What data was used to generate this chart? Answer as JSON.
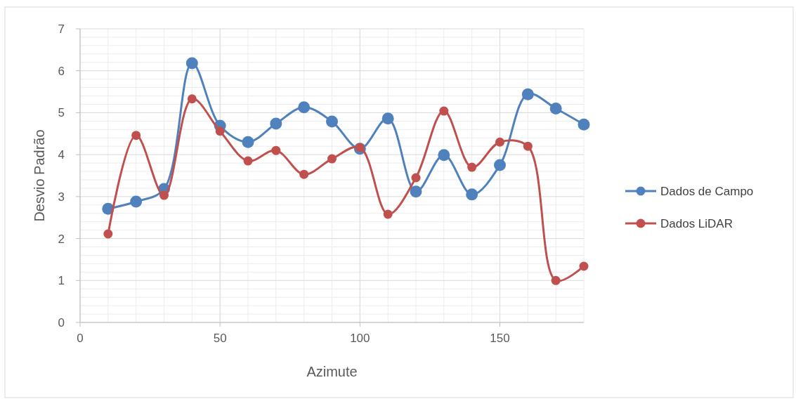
{
  "chart_data": {
    "type": "line",
    "xlabel": "Azimute",
    "ylabel": "Desvio Padrão",
    "x": [
      10,
      20,
      30,
      40,
      50,
      60,
      70,
      80,
      90,
      100,
      110,
      120,
      130,
      140,
      150,
      160,
      170,
      180
    ],
    "xlim": [
      0,
      180
    ],
    "xticks": [
      0,
      50,
      100,
      150
    ],
    "ylim": [
      0,
      7
    ],
    "yticks": [
      0,
      1,
      2,
      3,
      4,
      5,
      6,
      7
    ],
    "grid": true,
    "legend": "right",
    "marker": "circle",
    "line_style": "solid",
    "series": [
      {
        "name": "Dados de Campo",
        "color": "#4f81bd",
        "values": [
          2.71,
          2.88,
          3.18,
          6.18,
          4.69,
          4.3,
          4.74,
          5.13,
          4.79,
          4.14,
          4.86,
          3.12,
          3.99,
          3.05,
          3.75,
          5.44,
          5.1,
          4.72
        ]
      },
      {
        "name": "Dados LiDAR",
        "color": "#c0504d",
        "values": [
          2.11,
          4.46,
          3.03,
          5.33,
          4.56,
          3.85,
          4.1,
          3.53,
          3.9,
          4.17,
          2.58,
          3.45,
          5.04,
          3.7,
          4.3,
          4.2,
          1.0,
          1.34
        ]
      }
    ]
  }
}
